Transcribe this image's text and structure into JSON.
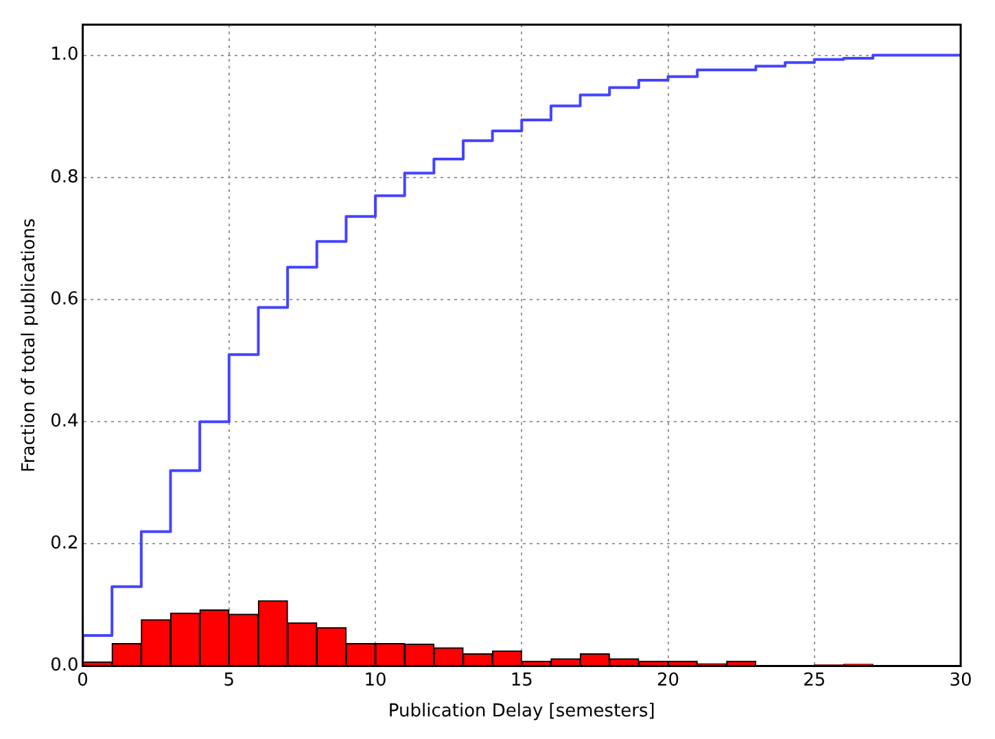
{
  "chart_data": {
    "type": "histogram",
    "xlabel": "Publication Delay [semesters]",
    "ylabel": "Fraction of total publications",
    "bins": [
      0,
      1,
      2,
      3,
      4,
      5,
      6,
      7,
      8,
      9,
      10,
      11,
      12,
      13,
      14,
      15,
      16,
      17,
      18,
      19,
      20,
      21,
      22,
      23,
      24,
      25,
      26,
      27,
      28,
      29,
      30
    ],
    "series": [
      {
        "color": "#ff0000",
        "values": [
          0.007,
          0.037,
          0.076,
          0.087,
          0.092,
          0.085,
          0.107,
          0.071,
          0.063,
          0.037,
          0.037,
          0.036,
          0.03,
          0.02,
          0.025,
          0.008,
          0.012,
          0.02,
          0.012,
          0.008,
          0.008,
          0.004,
          0.008,
          0.001,
          0.001,
          0.002,
          0.003,
          0.001,
          0.001,
          0
        ]
      },
      {
        "type": "step",
        "color": "#4444ff",
        "x": [
          0,
          1,
          2,
          3,
          4,
          5,
          6,
          7,
          8,
          9,
          10,
          11,
          12,
          13,
          14,
          15,
          16,
          17,
          18,
          19,
          20,
          21,
          22,
          23,
          24,
          25,
          26,
          27,
          28,
          29,
          30
        ],
        "values": [
          0.01,
          0.05,
          0.13,
          0.22,
          0.32,
          0.4,
          0.51,
          0.587,
          0.653,
          0.695,
          0.736,
          0.77,
          0.807,
          0.83,
          0.86,
          0.876,
          0.894,
          0.917,
          0.935,
          0.947,
          0.959,
          0.965,
          0.976,
          0.976,
          0.982,
          0.988,
          0.993,
          0.995,
          1.0,
          1.0,
          1.0
        ]
      }
    ],
    "xlim": [
      0,
      30
    ],
    "xticks": [
      0,
      5,
      10,
      15,
      20,
      25,
      30
    ],
    "ylim": [
      0,
      1.05
    ],
    "yticks": [
      {
        "value": 0,
        "label": "0.0"
      },
      {
        "value": 0.2,
        "label": "0.2"
      },
      {
        "value": 0.4,
        "label": "0.4"
      },
      {
        "value": 0.6,
        "label": "0.6"
      },
      {
        "value": 0.8,
        "label": "0.8"
      },
      {
        "value": 1,
        "label": "1.0"
      }
    ],
    "grid": true,
    "legend": false
  }
}
